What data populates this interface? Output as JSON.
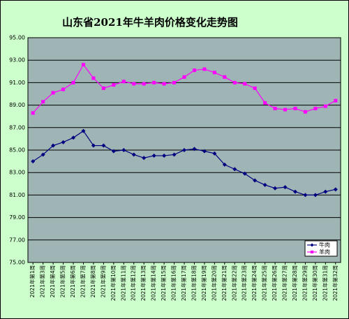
{
  "chart_data": {
    "type": "line",
    "title": "山东省2021年牛羊肉价格变化走势图",
    "categories": [
      "2021年第1周",
      "2021年第3周",
      "2021年第4周",
      "2021年第5周",
      "2021年第6周",
      "2021年第7周",
      "2021年第8周",
      "2021年第9周",
      "2021年第10周",
      "2021年第11周",
      "2021年第12周",
      "2021年第13周",
      "2021年第14周",
      "2021年第15周",
      "2021年第16周",
      "2021年第17周",
      "2021年第18周",
      "2021年第19周",
      "2021年第20周",
      "2021年第21周",
      "2021年第22周",
      "2021年第23周",
      "2021年第24周",
      "2021年第25周",
      "2021年第26周",
      "2021年第27周",
      "2021年第28周",
      "2021年第29周",
      "2021年第30周",
      "2021年第31周",
      "2021年第32周"
    ],
    "series": [
      {
        "name": "牛肉",
        "color": "#000080",
        "values": [
          84.0,
          84.6,
          85.4,
          85.7,
          86.1,
          86.7,
          85.4,
          85.4,
          84.9,
          85.0,
          84.6,
          84.3,
          84.5,
          84.5,
          84.6,
          85.0,
          85.1,
          84.9,
          84.7,
          83.7,
          83.3,
          82.9,
          82.3,
          81.9,
          81.6,
          81.7,
          81.3,
          81.0,
          81.0,
          81.3,
          81.5
        ]
      },
      {
        "name": "羊肉",
        "color": "#ff00ff",
        "values": [
          88.3,
          89.3,
          90.1,
          90.4,
          91.0,
          92.6,
          91.4,
          90.5,
          90.8,
          91.1,
          90.9,
          90.9,
          91.0,
          90.9,
          91.0,
          91.5,
          92.1,
          92.2,
          91.9,
          91.5,
          91.0,
          90.9,
          90.5,
          89.2,
          88.7,
          88.6,
          88.7,
          88.4,
          88.7,
          88.9,
          89.4
        ]
      }
    ],
    "ylim": [
      75,
      95
    ],
    "yticks": [
      {
        "value": 75,
        "label": "75.00"
      },
      {
        "value": 77,
        "label": "77.00"
      },
      {
        "value": 79,
        "label": "79.00"
      },
      {
        "value": 81,
        "label": "81.00"
      },
      {
        "value": 83,
        "label": "83.00"
      },
      {
        "value": 85,
        "label": "85.00"
      },
      {
        "value": 87,
        "label": "87.00"
      },
      {
        "value": 89,
        "label": "89.00"
      },
      {
        "value": 91,
        "label": "91.00"
      },
      {
        "value": 93,
        "label": "93.00"
      },
      {
        "value": 95,
        "label": "95.00"
      }
    ],
    "grid": true,
    "legend": "lower right"
  }
}
